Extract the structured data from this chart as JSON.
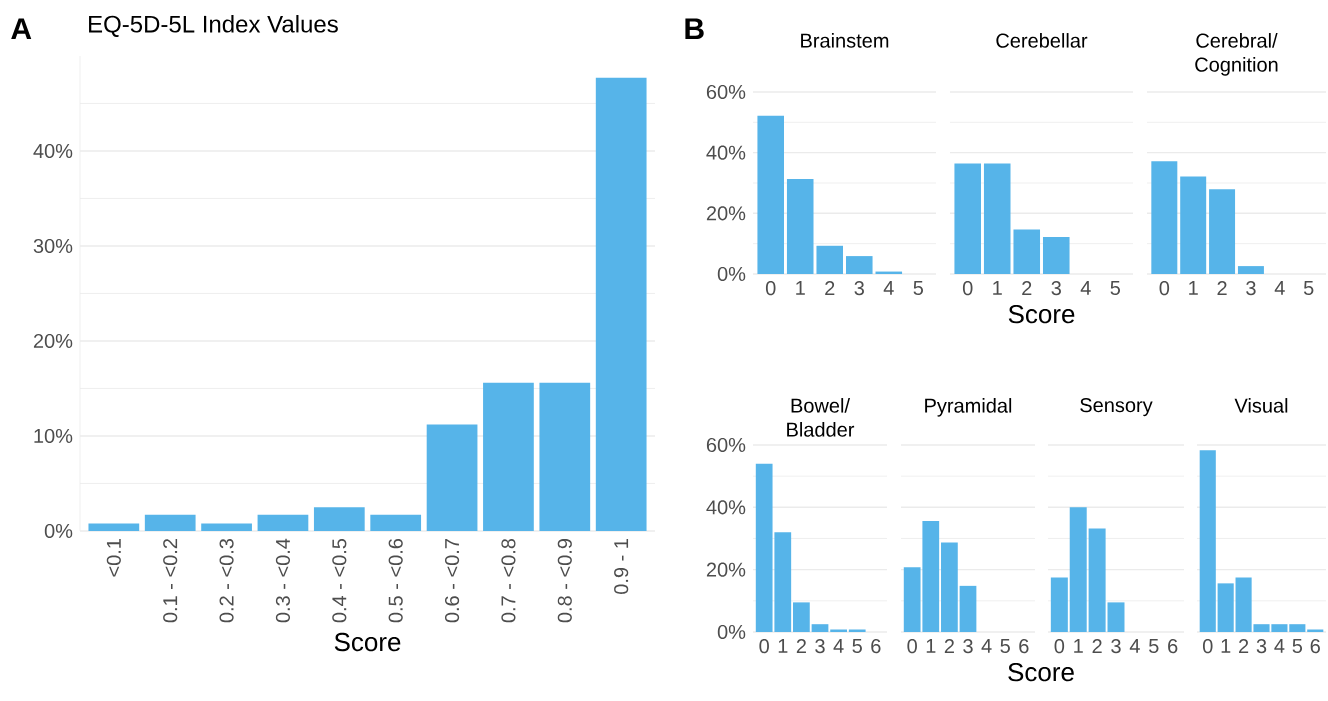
{
  "chart_data": [
    {
      "type": "bar",
      "title": "EQ-5D-5L Index Values",
      "xlabel": "Score",
      "annotations": [
        "A"
      ],
      "color": "#56b4e9",
      "grid": "y",
      "categories": [
        "<0.1",
        "0.1 - <0.2",
        "0.2 - <0.3",
        "0.3 - <0.4",
        "0.4 - <0.5",
        "0.5 - <0.6",
        "0.6 - <0.7",
        "0.7 - <0.8",
        "0.8 - <0.9",
        "0.9 - 1"
      ],
      "values": [
        0.8,
        1.7,
        0.8,
        1.7,
        2.5,
        1.7,
        11.2,
        15.6,
        15.6,
        47.7
      ],
      "ylim": [
        0,
        50
      ],
      "yticks": [
        {
          "value": 0,
          "label": "0%"
        },
        {
          "value": 10,
          "label": "10%"
        },
        {
          "value": 20,
          "label": "20%"
        },
        {
          "value": 30,
          "label": "30%"
        },
        {
          "value": 40,
          "label": "40%"
        }
      ]
    },
    {
      "type": "bar",
      "title": "Brainstem",
      "annotations": [
        "B"
      ],
      "color": "#56b4e9",
      "grid": "y",
      "categories": [
        "0",
        "1",
        "2",
        "3",
        "4",
        "5"
      ],
      "values": [
        52.2,
        31.3,
        9.3,
        5.9,
        0.8,
        0
      ],
      "ylim": [
        0,
        60
      ],
      "yticks": [
        {
          "value": 0,
          "label": "0%"
        },
        {
          "value": 20,
          "label": "20%"
        },
        {
          "value": 40,
          "label": "40%"
        },
        {
          "value": 60,
          "label": "60%"
        }
      ]
    },
    {
      "type": "bar",
      "title": "Cerebellar",
      "xlabel": "Score",
      "color": "#56b4e9",
      "grid": "y",
      "tick_labels": "x",
      "categories": [
        "0",
        "1",
        "2",
        "3",
        "4",
        "5"
      ],
      "values": [
        36.4,
        36.4,
        14.7,
        12.2,
        0,
        0
      ],
      "ylim": [
        0,
        60
      ],
      "yticks": [
        {
          "value": 0,
          "label": null
        },
        {
          "value": 20,
          "label": null
        },
        {
          "value": 40,
          "label": null
        },
        {
          "value": 60,
          "label": null
        }
      ]
    },
    {
      "type": "bar",
      "title": "Cerebral/ Cognition",
      "color": "#56b4e9",
      "grid": "y",
      "tick_labels": "x",
      "categories": [
        "0",
        "1",
        "2",
        "3",
        "4",
        "5"
      ],
      "values": [
        37.2,
        32.1,
        27.9,
        2.6,
        0,
        0
      ],
      "ylim": [
        0,
        60
      ],
      "yticks": [
        {
          "value": 0,
          "label": null
        },
        {
          "value": 20,
          "label": null
        },
        {
          "value": 40,
          "label": null
        },
        {
          "value": 60,
          "label": null
        }
      ]
    },
    {
      "type": "bar",
      "title": "Bowel/ Bladder",
      "color": "#56b4e9",
      "grid": "y",
      "categories": [
        "0",
        "1",
        "2",
        "3",
        "4",
        "5",
        "6"
      ],
      "values": [
        54.0,
        32.0,
        9.5,
        2.5,
        0.8,
        0.8,
        0
      ],
      "ylim": [
        0,
        60
      ],
      "yticks": [
        {
          "value": 0,
          "label": "0%"
        },
        {
          "value": 20,
          "label": "20%"
        },
        {
          "value": 40,
          "label": "40%"
        },
        {
          "value": 60,
          "label": "60%"
        }
      ]
    },
    {
      "type": "bar",
      "title": "Pyramidal",
      "xlabel": "Score",
      "color": "#56b4e9",
      "grid": "y",
      "tick_labels": "x",
      "categories": [
        "0",
        "1",
        "2",
        "3",
        "4",
        "5",
        "6"
      ],
      "values": [
        20.8,
        35.6,
        28.7,
        14.8,
        0,
        0,
        0
      ],
      "ylim": [
        0,
        60
      ],
      "yticks": [
        {
          "value": 0,
          "label": null
        },
        {
          "value": 20,
          "label": null
        },
        {
          "value": 40,
          "label": null
        },
        {
          "value": 60,
          "label": null
        }
      ]
    },
    {
      "type": "bar",
      "title": "Sensory",
      "color": "#56b4e9",
      "grid": "y",
      "tick_labels": "x",
      "categories": [
        "0",
        "1",
        "2",
        "3",
        "4",
        "5",
        "6"
      ],
      "values": [
        17.5,
        40.0,
        33.2,
        9.5,
        0,
        0,
        0
      ],
      "ylim": [
        0,
        60
      ],
      "yticks": [
        {
          "value": 0,
          "label": null
        },
        {
          "value": 20,
          "label": null
        },
        {
          "value": 40,
          "label": null
        },
        {
          "value": 60,
          "label": null
        }
      ]
    },
    {
      "type": "bar",
      "title": "Visual",
      "color": "#56b4e9",
      "grid": "y",
      "tick_labels": "x",
      "categories": [
        "0",
        "1",
        "2",
        "3",
        "4",
        "5",
        "6"
      ],
      "values": [
        58.3,
        15.6,
        17.5,
        2.5,
        2.5,
        2.5,
        0.8
      ],
      "ylim": [
        0,
        60
      ],
      "yticks": [
        {
          "value": 0,
          "label": null
        },
        {
          "value": 20,
          "label": null
        },
        {
          "value": 40,
          "label": null
        },
        {
          "value": 60,
          "label": null
        }
      ]
    }
  ]
}
